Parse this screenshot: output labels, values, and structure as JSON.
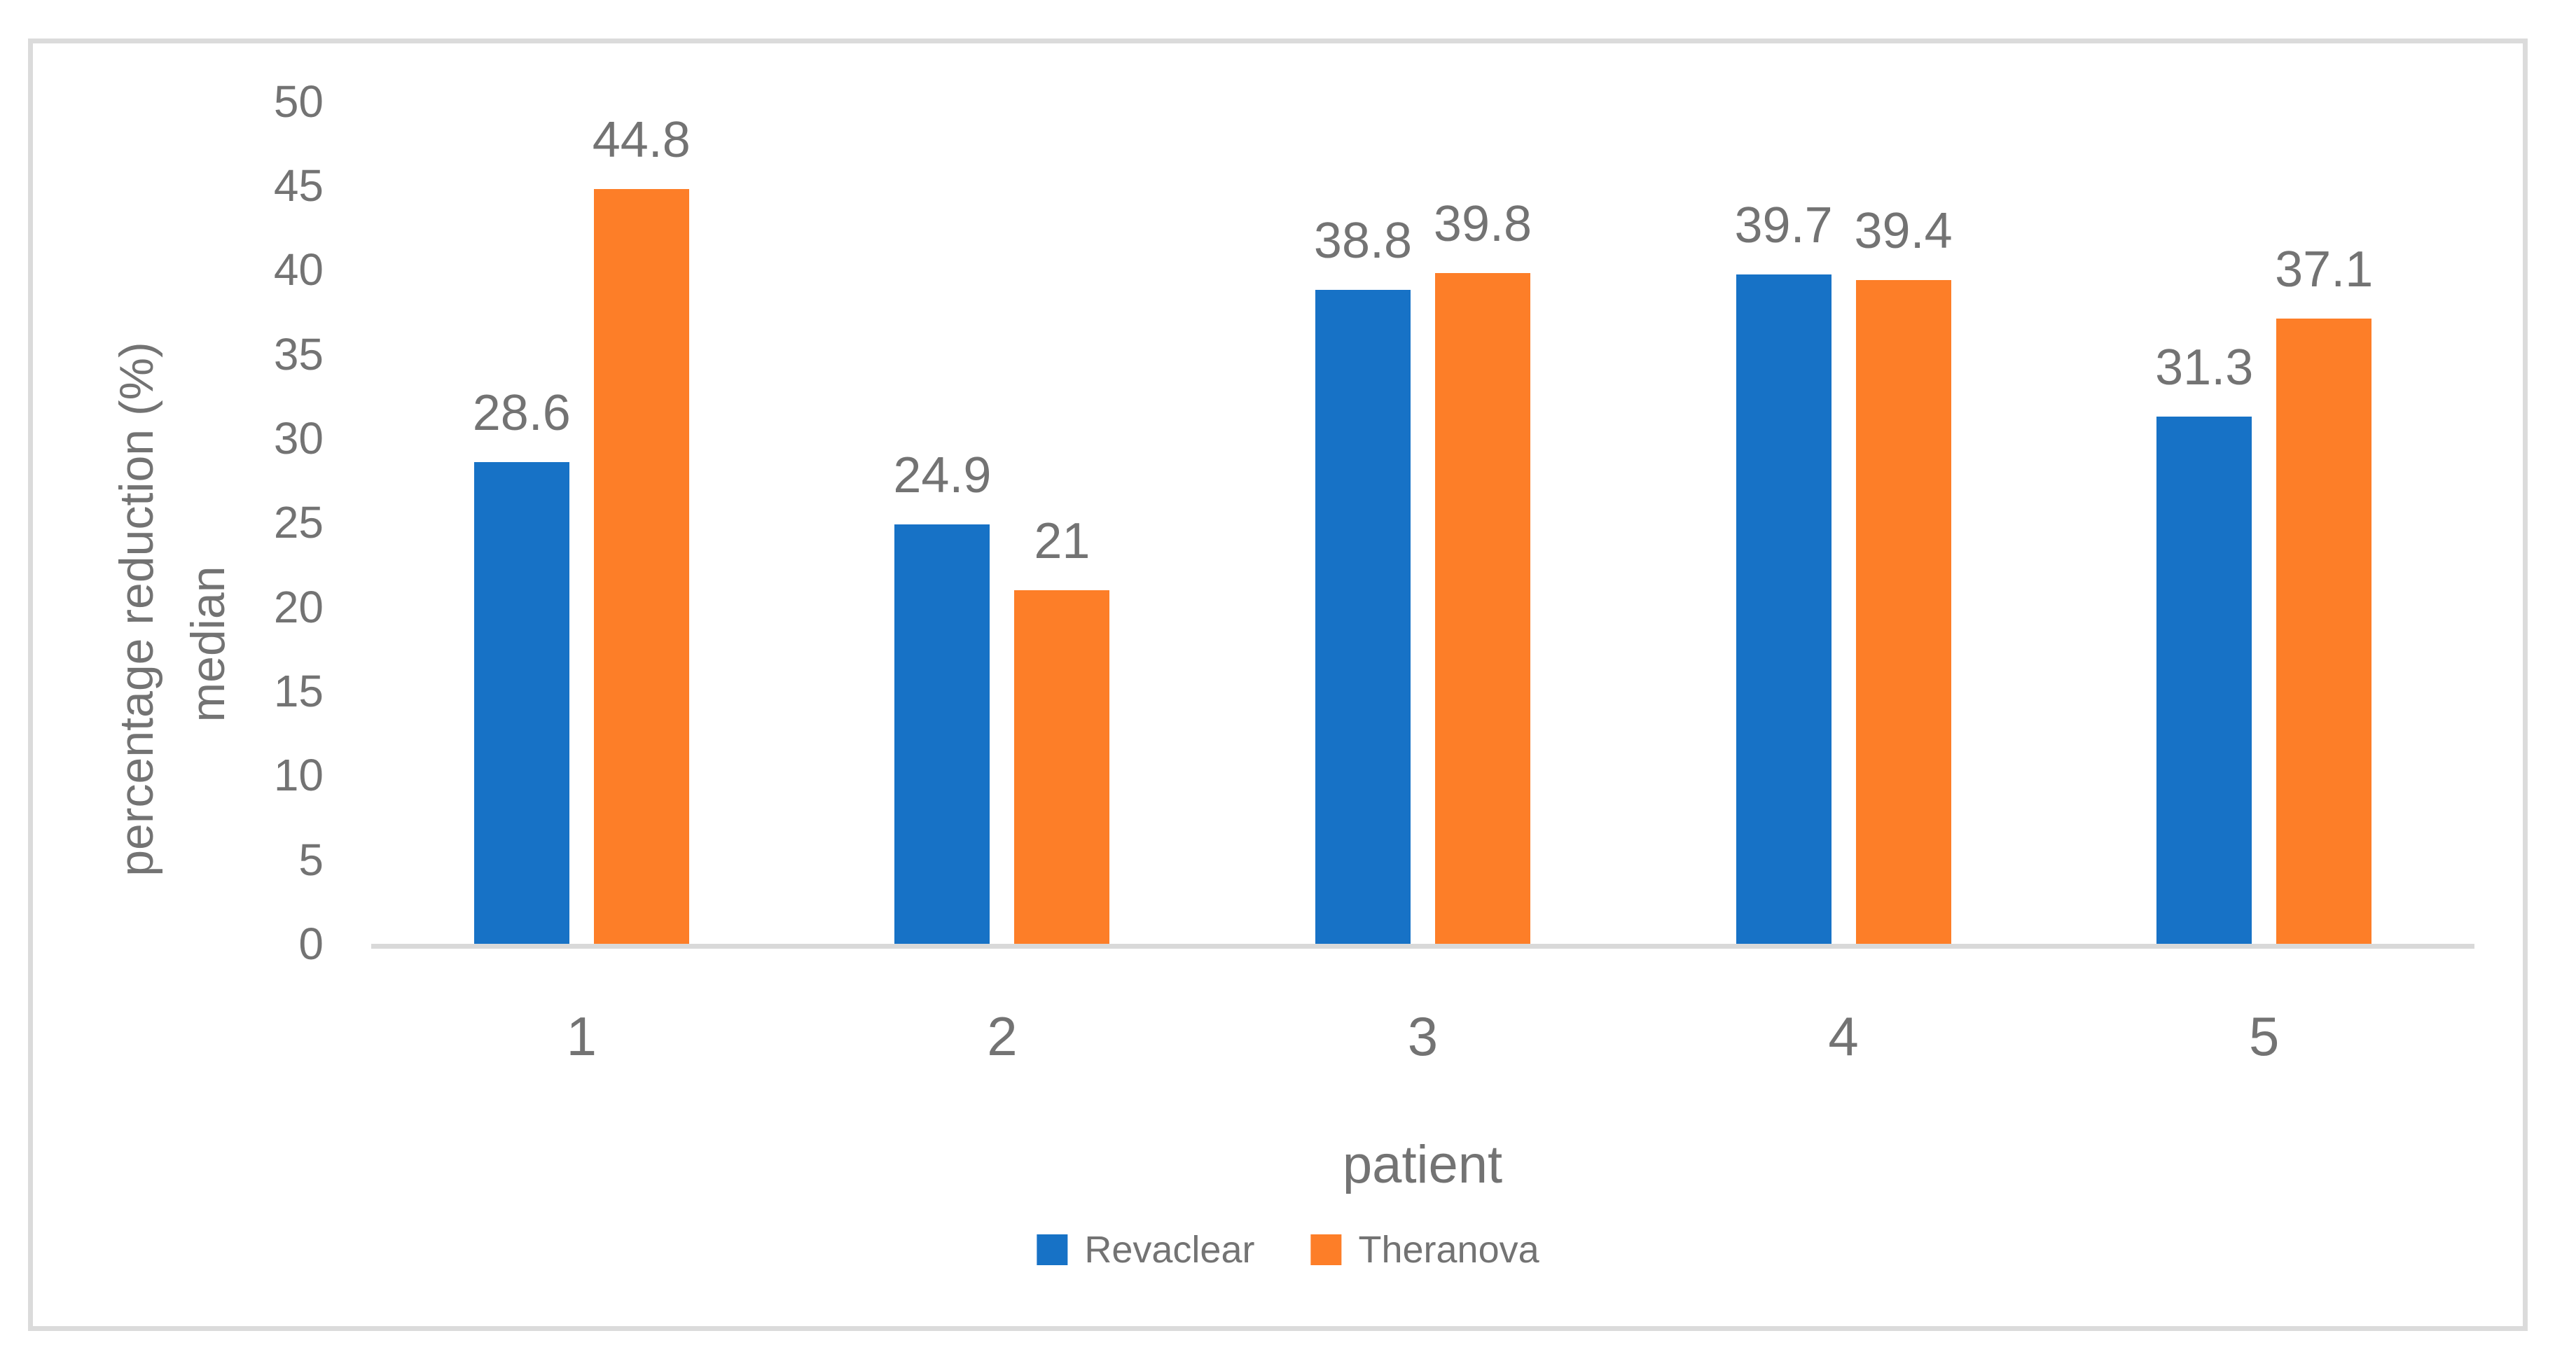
{
  "chart_data": {
    "type": "bar",
    "title": "",
    "categories": [
      "1",
      "2",
      "3",
      "4",
      "5"
    ],
    "series": [
      {
        "name": "Revaclear",
        "color": "#1772C6",
        "values": [
          28.6,
          24.9,
          38.8,
          39.7,
          31.3
        ],
        "labels": [
          "28.6",
          "24.9",
          "38.8",
          "39.7",
          "31.3"
        ]
      },
      {
        "name": "Theranova",
        "color": "#FD7E28",
        "values": [
          44.8,
          21,
          39.8,
          39.4,
          37.1
        ],
        "labels": [
          "44.8",
          "21",
          "39.8",
          "39.4",
          "37.1"
        ]
      }
    ],
    "xlabel": "patient",
    "ylabel_lines": [
      "percentage reduction (%)",
      "median"
    ],
    "ylim": [
      0,
      50
    ],
    "ytick_step": 5,
    "yticks": [
      0,
      5,
      10,
      15,
      20,
      25,
      30,
      35,
      40,
      45,
      50
    ],
    "grid": false,
    "legend_position": "bottom",
    "data_labels_shown": true
  },
  "axis": {
    "x_title": "patient",
    "y_title_line1": "percentage reduction (%)",
    "y_title_line2": "median"
  },
  "legend": {
    "items": [
      {
        "label": "Revaclear",
        "color": "#1772C6"
      },
      {
        "label": "Theranova",
        "color": "#FD7E28"
      }
    ]
  },
  "colors": {
    "series_blue": "#1772C6",
    "series_orange": "#FD7E28",
    "text": "#737373",
    "axis_line": "#D9D9D9",
    "frame_border": "#DBDBDB",
    "background": "#FFFFFF"
  }
}
